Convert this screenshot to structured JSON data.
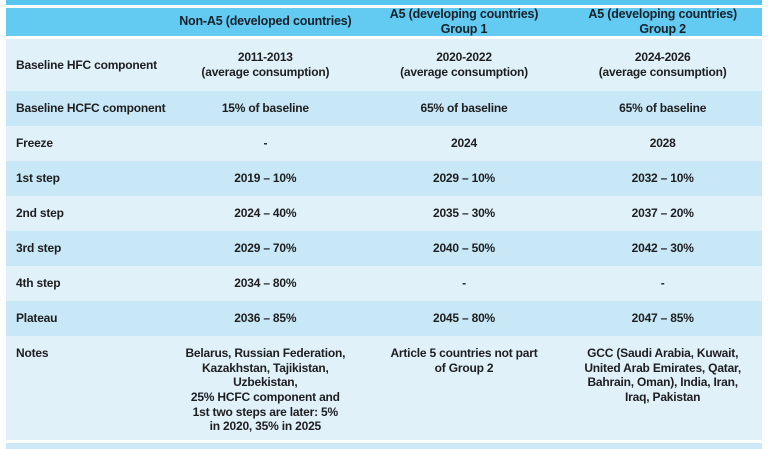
{
  "colors": {
    "header_bg": "#63caf1",
    "top_border": "#55c5ef",
    "row_light": "#e1f1fa",
    "row_dark": "#c9e8f7",
    "bottom_strip": "#cde9f7",
    "text": "#1d1e20"
  },
  "table": {
    "columns": [
      "",
      "Non-A5 (developed countries)",
      "A5 (developing countries) Group 1",
      "A5 (developing countries) Group 2"
    ],
    "rows": [
      {
        "label": "Baseline HFC component",
        "values": [
          "2011-2013\n(average consumption)",
          "2020-2022\n(average consumption)",
          "2024-2026\n(average consumption)"
        ]
      },
      {
        "label": "Baseline HCFC component",
        "values": [
          "15% of baseline",
          "65% of baseline",
          "65% of baseline"
        ]
      },
      {
        "label": "Freeze",
        "values": [
          "-",
          "2024",
          "2028"
        ]
      },
      {
        "label": "1st step",
        "values": [
          "2019 – 10%",
          "2029 – 10%",
          "2032 – 10%"
        ]
      },
      {
        "label": "2nd step",
        "values": [
          "2024 – 40%",
          "2035 – 30%",
          "2037 – 20%"
        ]
      },
      {
        "label": "3rd step",
        "values": [
          "2029 – 70%",
          "2040 – 50%",
          "2042 – 30%"
        ]
      },
      {
        "label": "4th step",
        "values": [
          "2034 – 80%",
          "-",
          "-"
        ]
      },
      {
        "label": "Plateau",
        "values": [
          "2036 – 85%",
          "2045 – 80%",
          "2047 – 85%"
        ]
      },
      {
        "label": "Notes",
        "values": [
          "Belarus, Russian Federation,\nKazakhstan, Tajikistan, Uzbekistan,\n25% HCFC component and\n1st two steps are later: 5%\nin 2020, 35% in 2025",
          "Article 5 countries not part\nof Group 2",
          "GCC (Saudi Arabia, Kuwait,\nUnited Arab Emirates, Qatar,\nBahrain, Oman), India, Iran,\nIraq, Pakistan"
        ]
      }
    ]
  },
  "chart_data": {
    "type": "table",
    "columns": [
      "",
      "Non-A5 (developed countries)",
      "A5 (developing countries) Group 1",
      "A5 (developing countries) Group 2"
    ],
    "rows": [
      [
        "Baseline HFC component",
        "2011-2013 (average consumption)",
        "2020-2022 (average consumption)",
        "2024-2026 (average consumption)"
      ],
      [
        "Baseline HCFC component",
        "15% of baseline",
        "65% of baseline",
        "65% of baseline"
      ],
      [
        "Freeze",
        "-",
        "2024",
        "2028"
      ],
      [
        "1st step",
        "2019 – 10%",
        "2029 – 10%",
        "2032 – 10%"
      ],
      [
        "2nd step",
        "2024 – 40%",
        "2035 – 30%",
        "2037 – 20%"
      ],
      [
        "3rd step",
        "2029 – 70%",
        "2040 – 50%",
        "2042 – 30%"
      ],
      [
        "4th step",
        "2034 – 80%",
        "-",
        "-"
      ],
      [
        "Plateau",
        "2036 – 85%",
        "2045 – 80%",
        "2047 – 85%"
      ],
      [
        "Notes",
        "Belarus, Russian Federation, Kazakhstan, Tajikistan, Uzbekistan, 25% HCFC component and 1st two steps are later: 5% in 2020, 35% in 2025",
        "Article 5 countries not part of Group 2",
        "GCC (Saudi Arabia, Kuwait, United Arab Emirates, Qatar, Bahrain, Oman), India, Iran, Iraq, Pakistan"
      ]
    ]
  }
}
